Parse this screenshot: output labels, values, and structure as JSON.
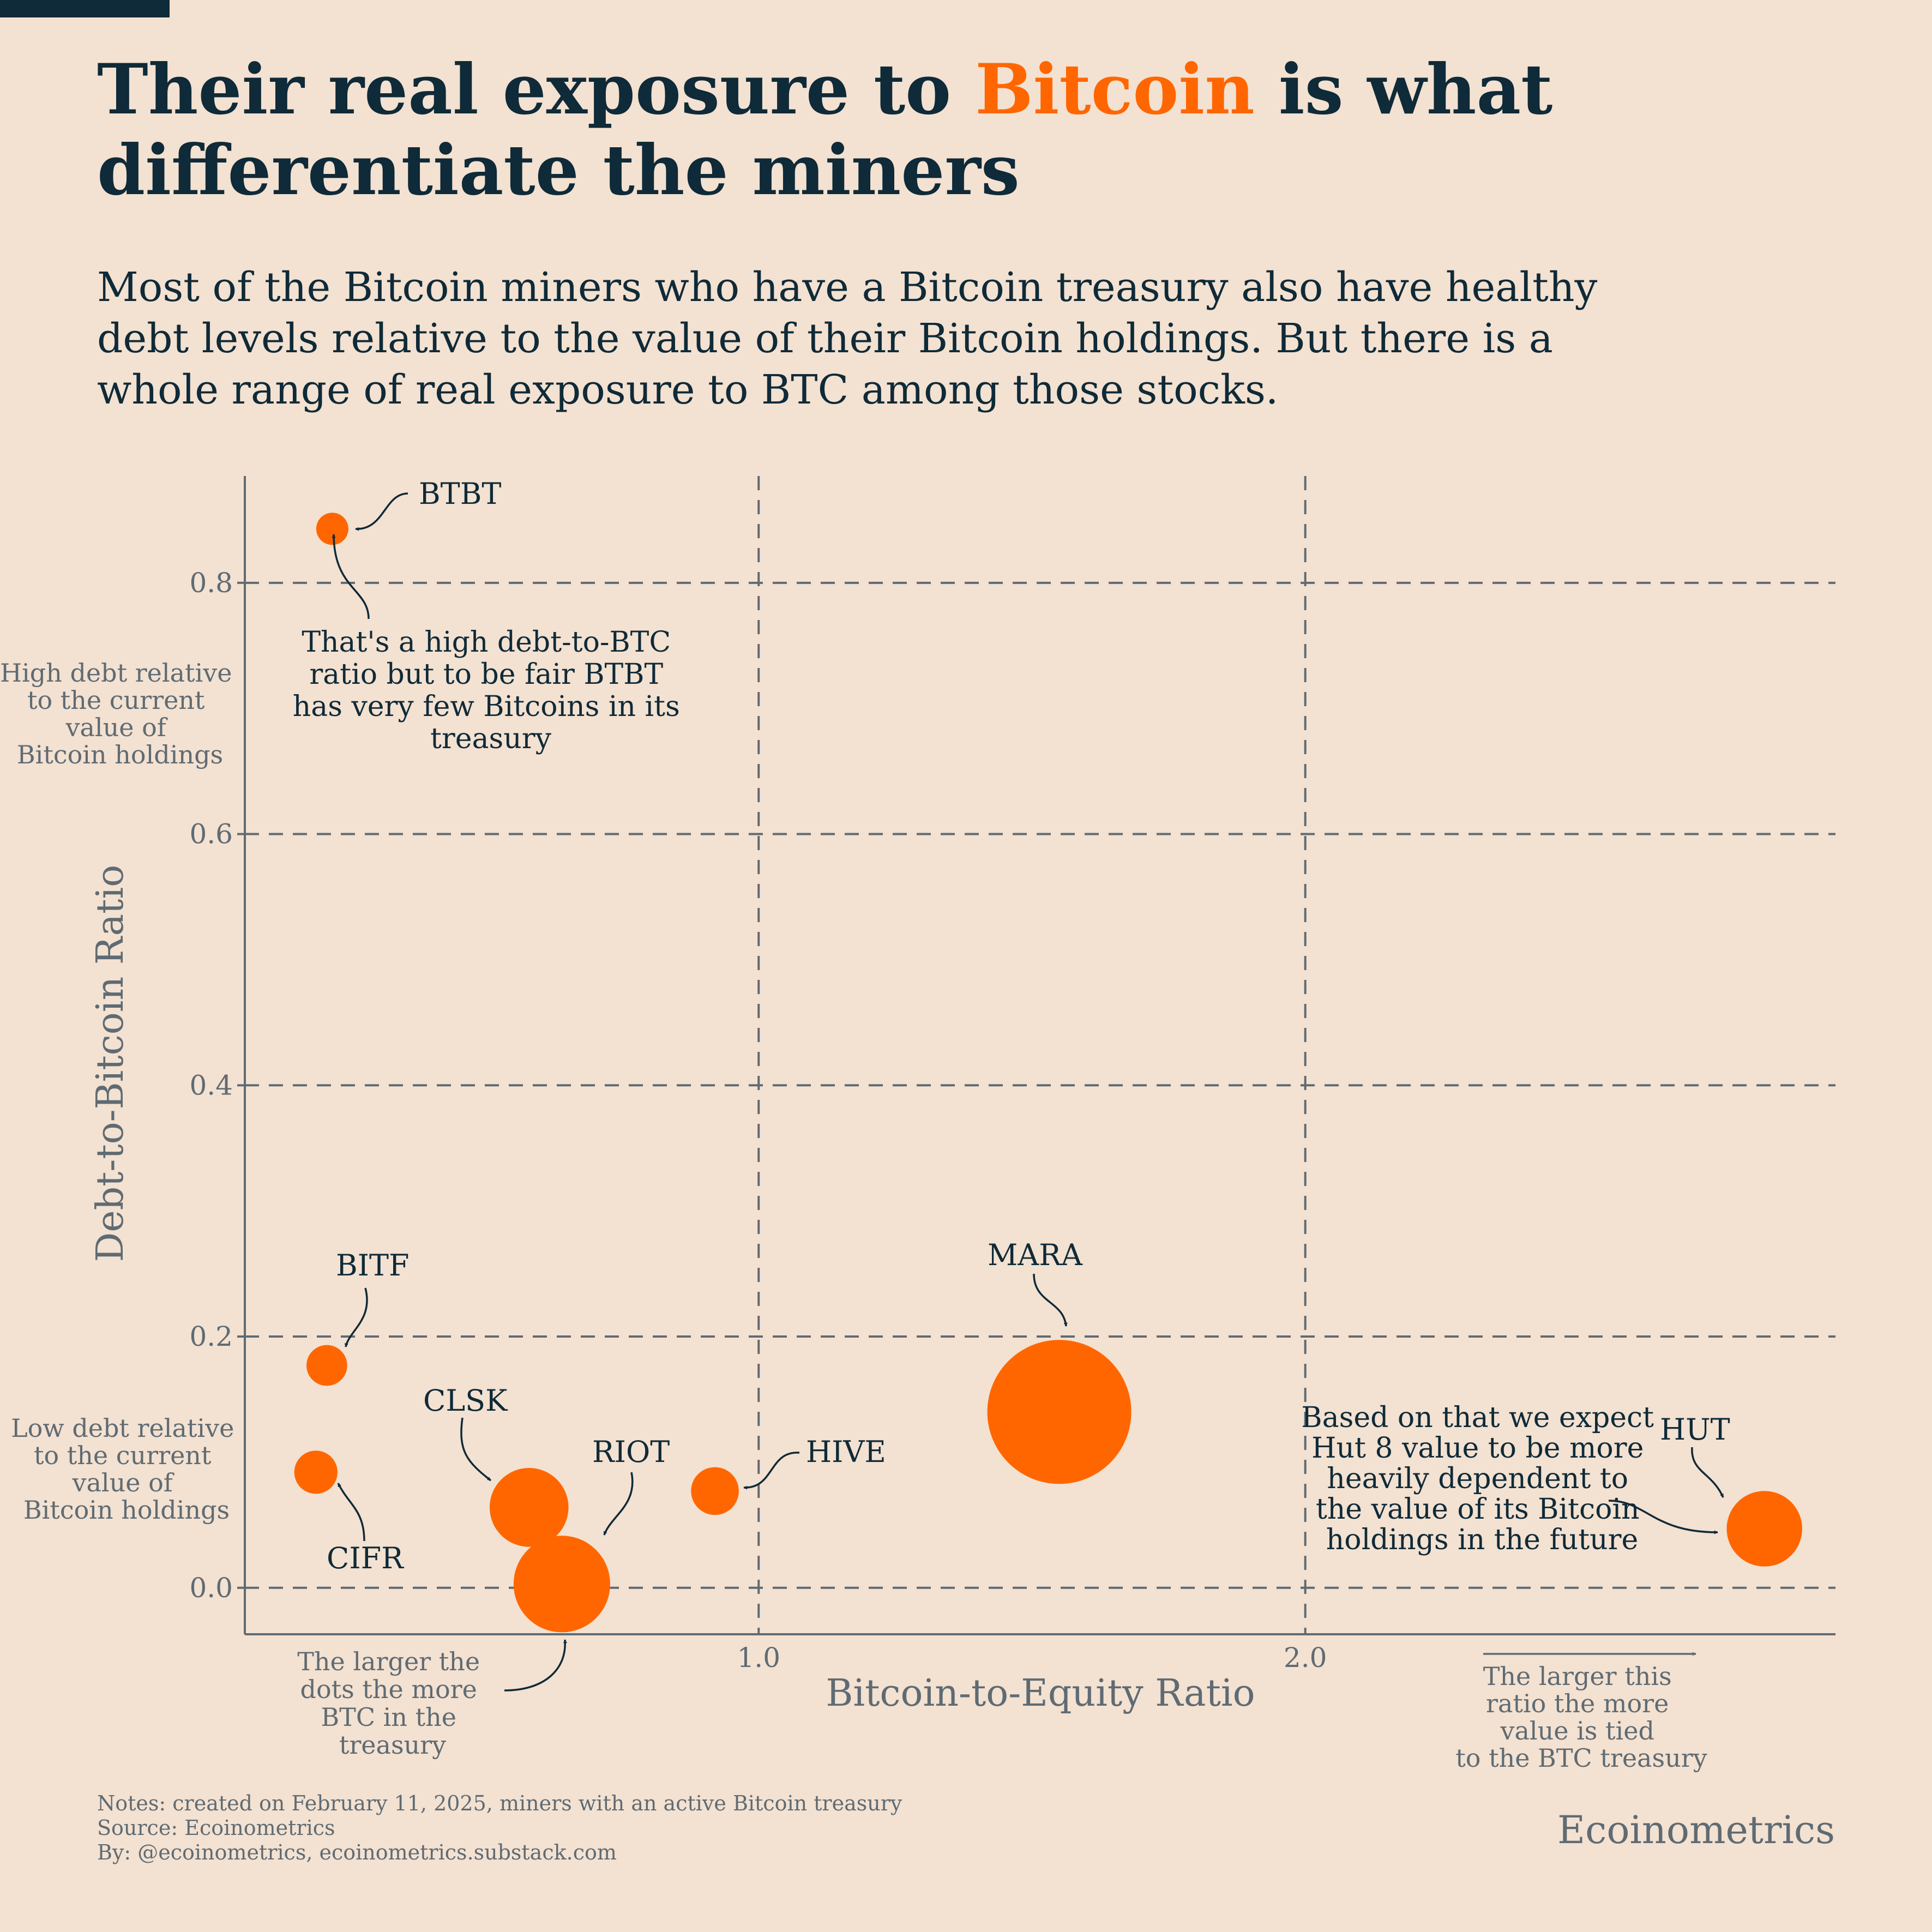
{
  "header": {
    "title_pre": "Their real exposure to ",
    "title_highlight": "Bitcoin",
    "title_post": " is what differentiate the miners",
    "subtitle": "Most of the Bitcoin miners who have a Bitcoin treasury also have healthy debt levels relative to the value of their Bitcoin holdings. But there is a whole range of real exposure to BTC among those stocks."
  },
  "colors": {
    "accent": "#ff6600",
    "text": "#0f2a38",
    "muted": "#5f6b73",
    "background": "#f3e1d1"
  },
  "chart_data": {
    "type": "scatter",
    "xlabel": "Bitcoin-to-Equity Ratio",
    "ylabel": "Debt-to-Bitcoin Ratio",
    "xlim": [
      -0.94,
      1.97
    ],
    "ylim": [
      -0.037,
      0.885
    ],
    "x_ticks": [
      {
        "value": 0.0,
        "label": "1.0"
      },
      {
        "value": 1.0,
        "label": "2.0"
      }
    ],
    "y_ticks": [
      {
        "value": 0.0,
        "label": "0.0"
      },
      {
        "value": 0.2,
        "label": "0.2"
      },
      {
        "value": 0.4,
        "label": "0.4"
      },
      {
        "value": 0.6,
        "label": "0.6"
      },
      {
        "value": 0.8,
        "label": "0.8"
      }
    ],
    "grid": "dashed",
    "size_encoding": "relative BTC held in treasury",
    "points": [
      {
        "label": "BTBT",
        "x": -0.78,
        "y": 0.843,
        "size": 1
      },
      {
        "label": "BITF",
        "x": -0.79,
        "y": 0.177,
        "size": 1.6
      },
      {
        "label": "CIFR",
        "x": -0.81,
        "y": 0.092,
        "size": 1.8
      },
      {
        "label": "CLSK",
        "x": -0.42,
        "y": 0.064,
        "size": 6
      },
      {
        "label": "RIOT",
        "x": -0.36,
        "y": 0.003,
        "size": 9
      },
      {
        "label": "HIVE",
        "x": -0.08,
        "y": 0.077,
        "size": 2.2
      },
      {
        "label": "MARA",
        "x": 0.55,
        "y": 0.14,
        "size": 20
      },
      {
        "label": "HUT",
        "x": 1.84,
        "y": 0.047,
        "size": 5.5
      }
    ],
    "annotations": {
      "btbt": "That's a high debt-to-BTC ratio but to be fair BTBT has very few Bitcoins in its treasury",
      "hut": "Based on that we expect Hut 8 value to be more heavily dependent to the value of its Bitcoin holdings in the future",
      "dots": "The larger the dots the more BTC in the treasury",
      "x_direction": "The larger this ratio the more value is tied to the BTC treasury",
      "high_debt": "High debt relative to the current value of Bitcoin holdings",
      "low_debt": "Low debt relative to the current value of Bitcoin holdings"
    }
  },
  "footer": {
    "notes": "Notes: created on February 11, 2025, miners with an active Bitcoin treasury",
    "source": "Source: Ecoinometrics",
    "by": "By: @ecoinometrics, ecoinometrics.substack.com",
    "brand": "Ecoinometrics"
  }
}
